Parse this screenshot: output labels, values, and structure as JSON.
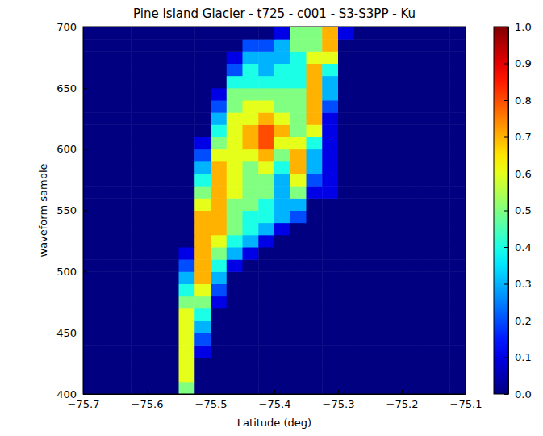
{
  "chart_data": {
    "type": "heatmap",
    "title": "Pine Island Glacier - t725 - c001 - S3-S3PP - Ku",
    "x_label": "Latitude (deg)",
    "y_label": "waveform sample",
    "xlim": [
      -75.7,
      -75.1
    ],
    "ylim": [
      400,
      700
    ],
    "xticks": [
      {
        "value": -75.7,
        "label": "−75.7"
      },
      {
        "value": -75.6,
        "label": "−75.6"
      },
      {
        "value": -75.5,
        "label": "−75.5"
      },
      {
        "value": -75.4,
        "label": "−75.4"
      },
      {
        "value": -75.3,
        "label": "−75.3"
      },
      {
        "value": -75.2,
        "label": "−75.2"
      },
      {
        "value": -75.1,
        "label": "−75.1"
      }
    ],
    "yticks": [
      400,
      450,
      500,
      550,
      600,
      650,
      700
    ],
    "x_bins": [
      -75.7,
      -75.675,
      -75.65,
      -75.625,
      -75.6,
      -75.575,
      -75.55,
      -75.525,
      -75.5,
      -75.475,
      -75.45,
      -75.425,
      -75.4,
      -75.375,
      -75.35,
      -75.325,
      -75.3,
      -75.275,
      -75.25,
      -75.225,
      -75.2,
      -75.175,
      -75.15,
      -75.125,
      -75.1
    ],
    "y_bins": [
      400,
      410,
      420,
      430,
      440,
      450,
      460,
      470,
      480,
      490,
      500,
      510,
      520,
      530,
      540,
      550,
      560,
      570,
      580,
      590,
      600,
      610,
      620,
      630,
      640,
      650,
      660,
      670,
      680,
      690,
      700
    ],
    "values": [
      [
        0,
        0,
        0,
        0,
        0,
        0,
        0.5,
        0,
        0,
        0,
        0,
        0,
        0,
        0,
        0,
        0,
        0,
        0,
        0,
        0,
        0,
        0,
        0,
        0
      ],
      [
        0,
        0,
        0,
        0,
        0,
        0,
        0.6,
        0,
        0,
        0,
        0,
        0,
        0,
        0,
        0,
        0,
        0,
        0,
        0,
        0,
        0,
        0,
        0,
        0
      ],
      [
        0,
        0,
        0,
        0,
        0,
        0,
        0.6,
        0,
        0,
        0,
        0,
        0,
        0,
        0,
        0,
        0,
        0,
        0,
        0,
        0,
        0,
        0,
        0,
        0
      ],
      [
        0,
        0,
        0,
        0,
        0,
        0,
        0.6,
        0.1,
        0,
        0,
        0,
        0,
        0,
        0,
        0,
        0,
        0,
        0,
        0,
        0,
        0,
        0,
        0,
        0
      ],
      [
        0,
        0,
        0,
        0,
        0,
        0,
        0.6,
        0.2,
        0,
        0,
        0,
        0,
        0,
        0,
        0,
        0,
        0,
        0,
        0,
        0,
        0,
        0,
        0,
        0
      ],
      [
        0,
        0,
        0,
        0,
        0,
        0,
        0.6,
        0.3,
        0,
        0,
        0,
        0,
        0,
        0,
        0,
        0,
        0,
        0,
        0,
        0,
        0,
        0,
        0,
        0
      ],
      [
        0,
        0,
        0,
        0,
        0,
        0,
        0.6,
        0.4,
        0,
        0,
        0,
        0,
        0,
        0,
        0,
        0,
        0,
        0,
        0,
        0,
        0,
        0,
        0,
        0
      ],
      [
        0,
        0,
        0,
        0,
        0,
        0,
        0.5,
        0.5,
        0.1,
        0,
        0,
        0,
        0,
        0,
        0,
        0,
        0,
        0,
        0,
        0,
        0,
        0,
        0,
        0
      ],
      [
        0,
        0,
        0,
        0,
        0,
        0,
        0.4,
        0.6,
        0.2,
        0,
        0,
        0,
        0,
        0,
        0,
        0,
        0,
        0,
        0,
        0,
        0,
        0,
        0,
        0
      ],
      [
        0,
        0,
        0,
        0,
        0,
        0,
        0.3,
        0.7,
        0.3,
        0,
        0,
        0,
        0,
        0,
        0,
        0,
        0,
        0,
        0,
        0,
        0,
        0,
        0,
        0
      ],
      [
        0,
        0,
        0,
        0,
        0,
        0,
        0.2,
        0.7,
        0.4,
        0.1,
        0,
        0,
        0,
        0,
        0,
        0,
        0,
        0,
        0,
        0,
        0,
        0,
        0,
        0
      ],
      [
        0,
        0,
        0,
        0,
        0,
        0,
        0.1,
        0.7,
        0.5,
        0.3,
        0.1,
        0,
        0,
        0,
        0,
        0,
        0,
        0,
        0,
        0,
        0,
        0,
        0,
        0
      ],
      [
        0,
        0,
        0,
        0,
        0,
        0,
        0,
        0.7,
        0.6,
        0.4,
        0.3,
        0.1,
        0,
        0,
        0,
        0,
        0,
        0,
        0,
        0,
        0,
        0,
        0,
        0
      ],
      [
        0,
        0,
        0,
        0,
        0,
        0,
        0,
        0.7,
        0.7,
        0.5,
        0.4,
        0.3,
        0.1,
        0,
        0,
        0,
        0,
        0,
        0,
        0,
        0,
        0,
        0,
        0
      ],
      [
        0,
        0,
        0,
        0,
        0,
        0,
        0,
        0.7,
        0.7,
        0.5,
        0.4,
        0.4,
        0.3,
        0.2,
        0,
        0,
        0,
        0,
        0,
        0,
        0,
        0,
        0,
        0
      ],
      [
        0,
        0,
        0,
        0,
        0,
        0,
        0,
        0.6,
        0.7,
        0.5,
        0.5,
        0.4,
        0.3,
        0.3,
        0,
        0,
        0,
        0,
        0,
        0,
        0,
        0,
        0,
        0
      ],
      [
        0,
        0,
        0,
        0,
        0,
        0,
        0,
        0.5,
        0.7,
        0.6,
        0.5,
        0.5,
        0.3,
        0.5,
        0.1,
        0.1,
        0,
        0,
        0,
        0,
        0,
        0,
        0,
        0
      ],
      [
        0,
        0,
        0,
        0,
        0,
        0,
        0,
        0.4,
        0.7,
        0.6,
        0.5,
        0.5,
        0.3,
        0.6,
        0.2,
        0.1,
        0,
        0,
        0,
        0,
        0,
        0,
        0,
        0
      ],
      [
        0,
        0,
        0,
        0,
        0,
        0,
        0,
        0.3,
        0.7,
        0.6,
        0.5,
        0.6,
        0.4,
        0.7,
        0.3,
        0.1,
        0,
        0,
        0,
        0,
        0,
        0,
        0,
        0
      ],
      [
        0,
        0,
        0,
        0,
        0,
        0,
        0,
        0.2,
        0.6,
        0.6,
        0.6,
        0.7,
        0.5,
        0.7,
        0.3,
        0.1,
        0,
        0,
        0,
        0,
        0,
        0,
        0,
        0
      ],
      [
        0,
        0,
        0,
        0,
        0,
        0,
        0,
        0.1,
        0.5,
        0.6,
        0.7,
        0.8,
        0.6,
        0.6,
        0.4,
        0.1,
        0,
        0,
        0,
        0,
        0,
        0,
        0,
        0
      ],
      [
        0,
        0,
        0,
        0,
        0,
        0,
        0,
        0,
        0.4,
        0.6,
        0.7,
        0.8,
        0.7,
        0.5,
        0.6,
        0.1,
        0,
        0,
        0,
        0,
        0,
        0,
        0,
        0
      ],
      [
        0,
        0,
        0,
        0,
        0,
        0,
        0,
        0,
        0.3,
        0.6,
        0.6,
        0.7,
        0.6,
        0.5,
        0.7,
        0.1,
        0,
        0,
        0,
        0,
        0,
        0,
        0,
        0
      ],
      [
        0,
        0,
        0,
        0,
        0,
        0,
        0,
        0,
        0.2,
        0.5,
        0.6,
        0.6,
        0.5,
        0.5,
        0.7,
        0.2,
        0,
        0,
        0,
        0,
        0,
        0,
        0,
        0
      ],
      [
        0,
        0,
        0,
        0,
        0,
        0,
        0,
        0,
        0.1,
        0.5,
        0.5,
        0.5,
        0.5,
        0.5,
        0.7,
        0.3,
        0,
        0,
        0,
        0,
        0,
        0,
        0,
        0
      ],
      [
        0,
        0,
        0,
        0,
        0,
        0,
        0,
        0,
        0,
        0.4,
        0.4,
        0.4,
        0.4,
        0.4,
        0.7,
        0.3,
        0,
        0,
        0,
        0,
        0,
        0,
        0,
        0
      ],
      [
        0,
        0,
        0,
        0,
        0,
        0,
        0,
        0,
        0,
        0.2,
        0.4,
        0.3,
        0.4,
        0.4,
        0.7,
        0.4,
        0,
        0,
        0,
        0,
        0,
        0,
        0,
        0
      ],
      [
        0,
        0,
        0,
        0,
        0,
        0,
        0,
        0,
        0,
        0.1,
        0.3,
        0.3,
        0.3,
        0.4,
        0.6,
        0.6,
        0,
        0,
        0,
        0,
        0,
        0,
        0,
        0
      ],
      [
        0,
        0,
        0,
        0,
        0,
        0,
        0,
        0,
        0,
        0,
        0.2,
        0.2,
        0.3,
        0.5,
        0.5,
        0.7,
        0,
        0,
        0,
        0,
        0,
        0,
        0,
        0
      ],
      [
        0,
        0,
        0,
        0,
        0,
        0,
        0,
        0,
        0,
        0,
        0,
        0,
        0.1,
        0.5,
        0.5,
        0.7,
        0.1,
        0,
        0,
        0,
        0,
        0,
        0,
        0
      ]
    ],
    "colorbar": {
      "range": [
        0,
        1
      ],
      "ticks": [
        {
          "value": 0,
          "label": "0.0"
        },
        {
          "value": 0.1,
          "label": "0.1"
        },
        {
          "value": 0.2,
          "label": "0.2"
        },
        {
          "value": 0.3,
          "label": "0.3"
        },
        {
          "value": 0.4,
          "label": "0.4"
        },
        {
          "value": 0.5,
          "label": "0.5"
        },
        {
          "value": 0.6,
          "label": "0.6"
        },
        {
          "value": 0.7,
          "label": "0.7"
        },
        {
          "value": 0.8,
          "label": "0.8"
        },
        {
          "value": 0.9,
          "label": "0.9"
        },
        {
          "value": 1,
          "label": "1.0"
        }
      ]
    }
  }
}
